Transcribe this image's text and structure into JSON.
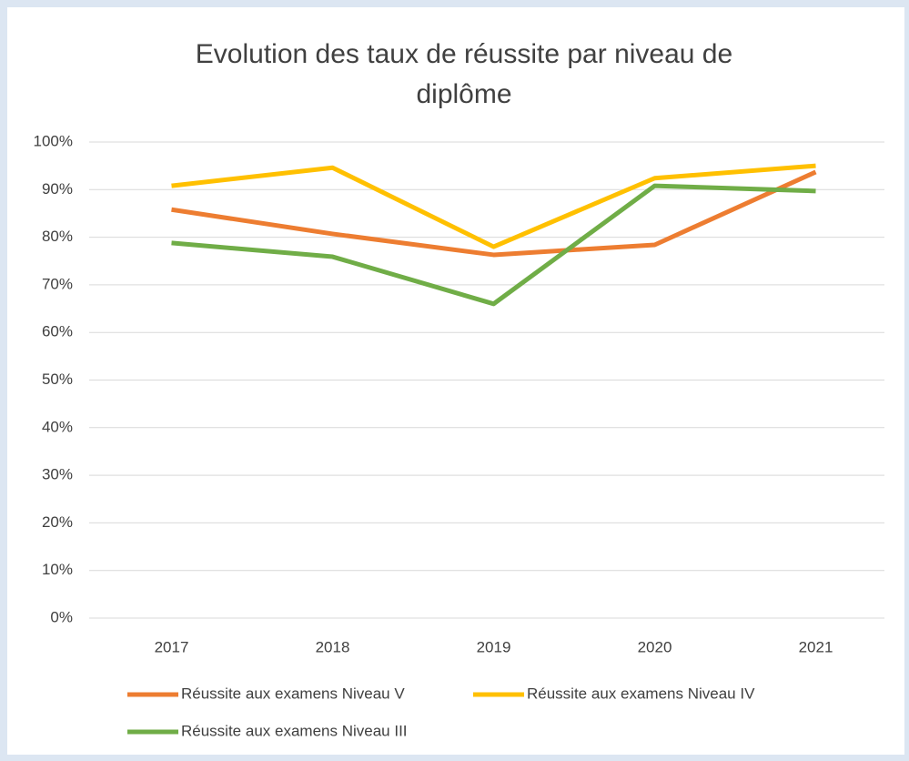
{
  "chart_data": {
    "type": "line",
    "title": "Evolution des taux de réussite par niveau de diplôme",
    "categories": [
      "2017",
      "2018",
      "2019",
      "2020",
      "2021"
    ],
    "series": [
      {
        "name": "Réussite aux examens Niveau V",
        "color": "#ed7d31",
        "values": [
          85.8,
          80.7,
          76.3,
          78.4,
          93.7
        ]
      },
      {
        "name": "Réussite aux examens Niveau IV",
        "color": "#ffc000",
        "values": [
          90.8,
          94.6,
          78.0,
          92.4,
          95.0
        ]
      },
      {
        "name": "Réussite aux examens Niveau III",
        "color": "#70ad47",
        "values": [
          78.8,
          75.9,
          66.0,
          90.8,
          89.7
        ]
      }
    ],
    "ylim": [
      0,
      100
    ],
    "yticks": [
      {
        "value": 0,
        "label": "0%"
      },
      {
        "value": 10,
        "label": "10%"
      },
      {
        "value": 20,
        "label": "20%"
      },
      {
        "value": 30,
        "label": "30%"
      },
      {
        "value": 40,
        "label": "40%"
      },
      {
        "value": 50,
        "label": "50%"
      },
      {
        "value": 60,
        "label": "60%"
      },
      {
        "value": 70,
        "label": "70%"
      },
      {
        "value": 80,
        "label": "80%"
      },
      {
        "value": 90,
        "label": "90%"
      },
      {
        "value": 100,
        "label": "100%"
      }
    ],
    "grid": true,
    "legend": "bottom"
  }
}
